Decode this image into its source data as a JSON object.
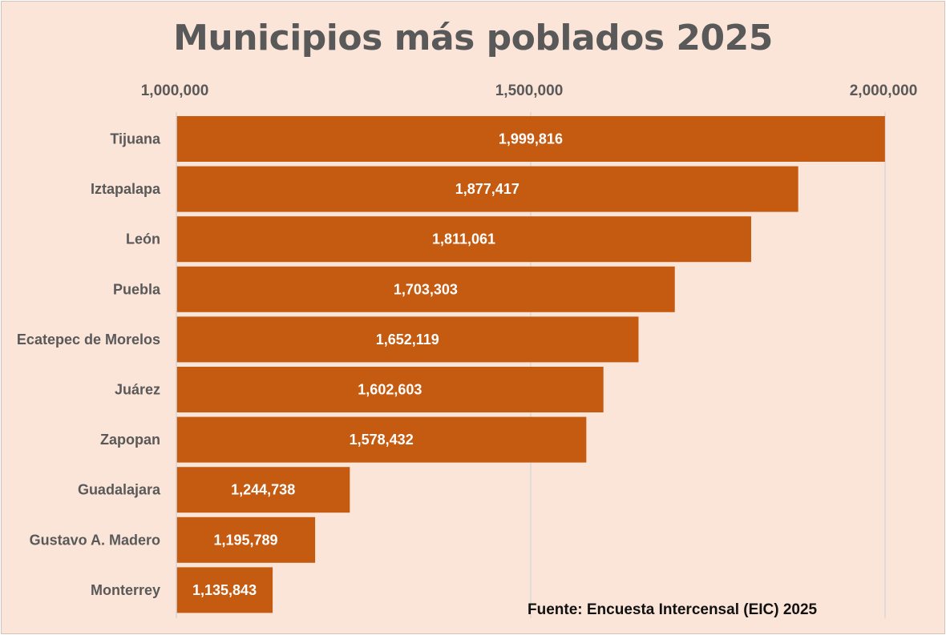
{
  "chart_data": {
    "type": "bar",
    "orientation": "horizontal",
    "title": "Municipios más poblados 2025",
    "categories": [
      "Tijuana",
      "Iztapalapa",
      "León",
      "Puebla",
      "Ecatepec de Morelos",
      "Juárez",
      "Zapopan",
      "Guadalajara",
      "Gustavo A. Madero",
      "Monterrey"
    ],
    "values": [
      1999816,
      1877417,
      1811061,
      1703303,
      1652119,
      1602603,
      1578432,
      1244738,
      1195789,
      1135843
    ],
    "value_labels": [
      "1,999,816",
      "1,877,417",
      "1,811,061",
      "1,703,303",
      "1,652,119",
      "1,602,603",
      "1,578,432",
      "1,244,738",
      "1,195,789",
      "1,135,843"
    ],
    "xlim": [
      1000000,
      2000000
    ],
    "x_ticks": [
      1000000,
      1500000,
      2000000
    ],
    "x_tick_labels": [
      "1,000,000",
      "1,500,000",
      "2,000,000"
    ],
    "x_axis_position": "top",
    "xlabel": "",
    "ylabel": "",
    "grid": true,
    "legend": "none",
    "colors": {
      "bar": "#c55a11",
      "background": "#fbe5d8",
      "gridline": "#d9d9d9",
      "text": "#595959",
      "data_label": "#ffffff"
    },
    "source": "Fuente: Encuesta Intercensal (EIC) 2025"
  }
}
